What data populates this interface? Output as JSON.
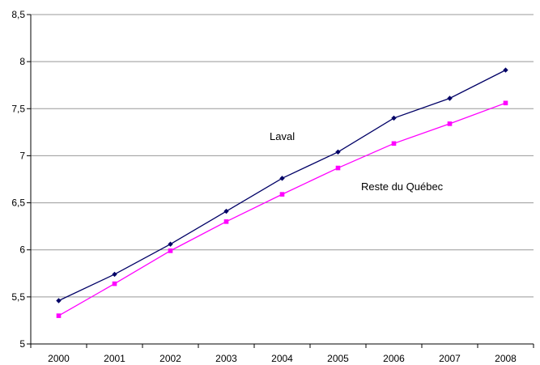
{
  "chart_data": {
    "type": "line",
    "title": "",
    "xlabel": "",
    "ylabel": "",
    "categories": [
      "2000",
      "2001",
      "2002",
      "2003",
      "2004",
      "2005",
      "2006",
      "2007",
      "2008"
    ],
    "ylim": [
      5,
      8.5
    ],
    "yticks": [
      "5",
      "5,5",
      "6",
      "6,5",
      "7",
      "7,5",
      "8",
      "8,5"
    ],
    "grid": true,
    "legend": "none",
    "series": [
      {
        "name": "Laval",
        "color": "#000066",
        "marker": "diamond",
        "values": [
          5.46,
          5.74,
          6.06,
          6.41,
          6.76,
          7.04,
          7.4,
          7.61,
          7.91
        ]
      },
      {
        "name": "Reste du Québec",
        "color": "#ff00ff",
        "marker": "square",
        "values": [
          5.3,
          5.64,
          5.99,
          6.3,
          6.59,
          6.87,
          7.13,
          7.34,
          7.56
        ]
      }
    ]
  }
}
